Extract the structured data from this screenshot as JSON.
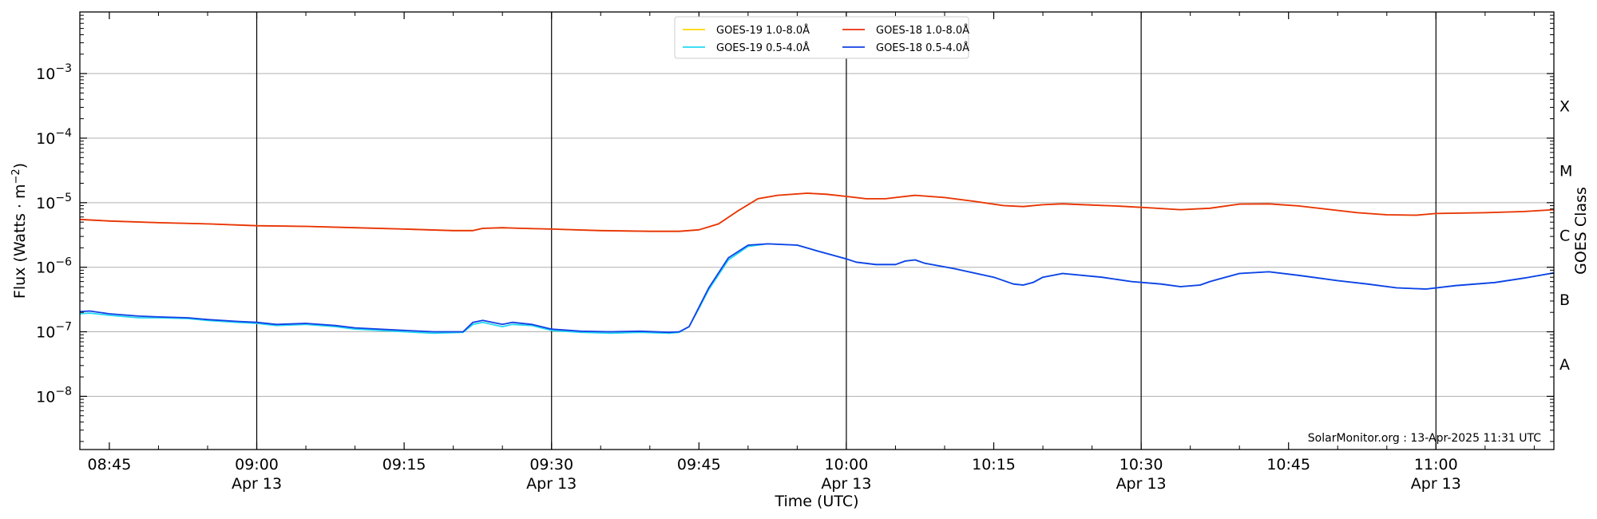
{
  "chart_data": {
    "type": "line",
    "xlabel": "Time (UTC)",
    "ylabel_parts": [
      "Flux (Watts · m",
      "−2",
      ")"
    ],
    "right_label": "GOES Class",
    "x_range": [
      "08:42",
      "11:12"
    ],
    "y_range": [
      1.5e-09,
      0.009
    ],
    "y_scale": "log",
    "grid": "horizontal at decades",
    "legend_position": "top-center",
    "colors": {
      "goes19_long": "#ffd700",
      "goes18_long": "#e8310e",
      "goes19_short": "#22d8f0",
      "goes18_short": "#1340e6",
      "vlines": "#000000",
      "grid": "#b0b0b0"
    },
    "x_ticks": [
      {
        "t": "08:45",
        "line1": "08:45",
        "line2": ""
      },
      {
        "t": "09:00",
        "line1": "09:00",
        "line2": "Apr 13"
      },
      {
        "t": "09:15",
        "line1": "09:15",
        "line2": ""
      },
      {
        "t": "09:30",
        "line1": "09:30",
        "line2": "Apr 13"
      },
      {
        "t": "09:45",
        "line1": "09:45",
        "line2": ""
      },
      {
        "t": "10:00",
        "line1": "10:00",
        "line2": "Apr 13"
      },
      {
        "t": "10:15",
        "line1": "10:15",
        "line2": ""
      },
      {
        "t": "10:30",
        "line1": "10:30",
        "line2": "Apr 13"
      },
      {
        "t": "10:45",
        "line1": "10:45",
        "line2": ""
      },
      {
        "t": "11:00",
        "line1": "11:00",
        "line2": "Apr 13"
      }
    ],
    "y_ticks": [
      {
        "value": 1e-08,
        "exp": "−8"
      },
      {
        "value": 1e-07,
        "exp": "−7"
      },
      {
        "value": 1e-06,
        "exp": "−6"
      },
      {
        "value": 1e-05,
        "exp": "−5"
      },
      {
        "value": 0.0001,
        "exp": "−4"
      },
      {
        "value": 0.001,
        "exp": "−3"
      }
    ],
    "goes_classes": [
      {
        "label": "A",
        "value": 3.16e-08
      },
      {
        "label": "B",
        "value": 3.16e-07
      },
      {
        "label": "C",
        "value": 3.16e-06
      },
      {
        "label": "M",
        "value": 3.16e-05
      },
      {
        "label": "X",
        "value": 0.000316
      }
    ],
    "vlines": [
      "09:00",
      "09:30",
      "10:00",
      "10:30",
      "11:00"
    ],
    "series": [
      {
        "name": "GOES-19 1.0-8.0Å",
        "color_key": "goes19_long",
        "x": [
          "08:42",
          "08:45",
          "08:50",
          "08:55",
          "09:00",
          "09:05",
          "09:10",
          "09:15",
          "09:20",
          "09:22",
          "09:23",
          "09:25",
          "09:27",
          "09:30",
          "09:35",
          "09:40",
          "09:43",
          "09:45",
          "09:47",
          "09:49",
          "09:51",
          "09:53",
          "09:56",
          "09:58",
          "10:00",
          "10:02",
          "10:04",
          "10:05",
          "10:07",
          "10:10",
          "10:13",
          "10:16",
          "10:18",
          "10:20",
          "10:22",
          "10:25",
          "10:28",
          "10:31",
          "10:34",
          "10:37",
          "10:40",
          "10:43",
          "10:46",
          "10:49",
          "10:52",
          "10:55",
          "10:58",
          "11:00",
          "11:05",
          "11:09",
          "11:12"
        ],
        "y": [
          5.5e-06,
          5.2e-06,
          4.9e-06,
          4.7e-06,
          4.4e-06,
          4.3e-06,
          4.1e-06,
          3.9e-06,
          3.7e-06,
          3.7e-06,
          4e-06,
          4.1e-06,
          4e-06,
          3.9e-06,
          3.7e-06,
          3.6e-06,
          3.6e-06,
          3.8e-06,
          4.7e-06,
          7.5e-06,
          1.15e-05,
          1.3e-05,
          1.4e-05,
          1.35e-05,
          1.25e-05,
          1.15e-05,
          1.15e-05,
          1.2e-05,
          1.3e-05,
          1.2e-05,
          1.05e-05,
          9e-06,
          8.7e-06,
          9.3e-06,
          9.6e-06,
          9.2e-06,
          8.8e-06,
          8.3e-06,
          7.8e-06,
          8.2e-06,
          9.5e-06,
          9.6e-06,
          8.9e-06,
          7.9e-06,
          7e-06,
          6.5e-06,
          6.4e-06,
          6.8e-06,
          7e-06,
          7.3e-06,
          7.8e-06
        ]
      },
      {
        "name": "GOES-18 1.0-8.0Å",
        "color_key": "goes18_long",
        "x": [
          "08:42",
          "08:45",
          "08:50",
          "08:55",
          "09:00",
          "09:05",
          "09:10",
          "09:15",
          "09:20",
          "09:22",
          "09:23",
          "09:25",
          "09:27",
          "09:30",
          "09:35",
          "09:40",
          "09:43",
          "09:45",
          "09:47",
          "09:49",
          "09:51",
          "09:53",
          "09:56",
          "09:58",
          "10:00",
          "10:02",
          "10:04",
          "10:05",
          "10:07",
          "10:10",
          "10:13",
          "10:16",
          "10:18",
          "10:20",
          "10:22",
          "10:25",
          "10:28",
          "10:31",
          "10:34",
          "10:37",
          "10:40",
          "10:43",
          "10:46",
          "10:49",
          "10:52",
          "10:55",
          "10:58",
          "11:00",
          "11:05",
          "11:09",
          "11:12"
        ],
        "y": [
          5.5e-06,
          5.2e-06,
          4.9e-06,
          4.7e-06,
          4.4e-06,
          4.3e-06,
          4.1e-06,
          3.9e-06,
          3.7e-06,
          3.7e-06,
          4e-06,
          4.1e-06,
          4e-06,
          3.9e-06,
          3.7e-06,
          3.6e-06,
          3.6e-06,
          3.8e-06,
          4.7e-06,
          7.5e-06,
          1.15e-05,
          1.3e-05,
          1.4e-05,
          1.35e-05,
          1.25e-05,
          1.15e-05,
          1.15e-05,
          1.2e-05,
          1.3e-05,
          1.2e-05,
          1.05e-05,
          9e-06,
          8.7e-06,
          9.3e-06,
          9.6e-06,
          9.2e-06,
          8.8e-06,
          8.3e-06,
          7.8e-06,
          8.2e-06,
          9.5e-06,
          9.6e-06,
          8.9e-06,
          7.9e-06,
          7e-06,
          6.5e-06,
          6.4e-06,
          6.8e-06,
          7e-06,
          7.3e-06,
          7.8e-06
        ]
      },
      {
        "name": "GOES-19 0.5-4.0Å",
        "color_key": "goes19_short",
        "x": [
          "08:42",
          "08:43",
          "08:45",
          "08:48",
          "08:50",
          "08:53",
          "08:55",
          "08:58",
          "09:00",
          "09:02",
          "09:05",
          "09:08",
          "09:10",
          "09:15",
          "09:18",
          "09:21",
          "09:22",
          "09:23",
          "09:25",
          "09:26",
          "09:28",
          "09:30",
          "09:33",
          "09:36",
          "09:39",
          "09:42",
          "09:43",
          "09:44",
          "09:45",
          "09:46",
          "09:48",
          "09:50",
          "09:52",
          "09:55",
          "09:57",
          "10:00",
          "10:01",
          "10:03",
          "10:05",
          "10:06",
          "10:07",
          "10:08",
          "10:11",
          "10:15",
          "10:17",
          "10:18",
          "10:19",
          "10:20",
          "10:22",
          "10:26",
          "10:29",
          "10:32",
          "10:34",
          "10:36",
          "10:37",
          "10:40",
          "10:43",
          "10:46",
          "10:50",
          "10:53",
          "10:56",
          "10:59",
          "11:02",
          "11:06",
          "11:09",
          "11:12"
        ],
        "y": [
          1.9e-07,
          1.95e-07,
          1.8e-07,
          1.65e-07,
          1.65e-07,
          1.6e-07,
          1.5e-07,
          1.4e-07,
          1.35e-07,
          1.25e-07,
          1.3e-07,
          1.2e-07,
          1.1e-07,
          1e-07,
          9.5e-08,
          9.8e-08,
          1.3e-07,
          1.4e-07,
          1.2e-07,
          1.3e-07,
          1.25e-07,
          1.05e-07,
          9.8e-08,
          9.5e-08,
          9.8e-08,
          9.5e-08,
          9.8e-08,
          1.2e-07,
          2.3e-07,
          4.5e-07,
          1.3e-06,
          2.1e-06,
          2.3e-06,
          2.2e-06,
          1.8e-06,
          1.35e-06,
          1.2e-06,
          1.1e-06,
          1.1e-06,
          1.25e-06,
          1.3e-06,
          1.15e-06,
          9.5e-07,
          7e-07,
          5.5e-07,
          5.3e-07,
          5.8e-07,
          7e-07,
          8e-07,
          7e-07,
          6e-07,
          5.5e-07,
          5e-07,
          5.3e-07,
          6e-07,
          8e-07,
          8.5e-07,
          7.5e-07,
          6.2e-07,
          5.5e-07,
          4.8e-07,
          4.6e-07,
          5.2e-07,
          5.8e-07,
          6.8e-07,
          8.2e-07
        ]
      },
      {
        "name": "GOES-18 0.5-4.0Å",
        "color_key": "goes18_short",
        "x": [
          "08:42",
          "08:43",
          "08:45",
          "08:48",
          "08:50",
          "08:53",
          "08:55",
          "08:58",
          "09:00",
          "09:02",
          "09:05",
          "09:08",
          "09:10",
          "09:15",
          "09:18",
          "09:21",
          "09:22",
          "09:23",
          "09:25",
          "09:26",
          "09:28",
          "09:30",
          "09:33",
          "09:36",
          "09:39",
          "09:42",
          "09:43",
          "09:44",
          "09:45",
          "09:46",
          "09:48",
          "09:50",
          "09:52",
          "09:55",
          "09:57",
          "10:00",
          "10:01",
          "10:03",
          "10:05",
          "10:06",
          "10:07",
          "10:08",
          "10:11",
          "10:15",
          "10:17",
          "10:18",
          "10:19",
          "10:20",
          "10:22",
          "10:26",
          "10:29",
          "10:32",
          "10:34",
          "10:36",
          "10:37",
          "10:40",
          "10:43",
          "10:46",
          "10:50",
          "10:53",
          "10:56",
          "10:59",
          "11:02",
          "11:06",
          "11:09",
          "11:12"
        ],
        "y": [
          2.05e-07,
          2.1e-07,
          1.9e-07,
          1.75e-07,
          1.7e-07,
          1.65e-07,
          1.55e-07,
          1.45e-07,
          1.4e-07,
          1.3e-07,
          1.35e-07,
          1.25e-07,
          1.15e-07,
          1.05e-07,
          1e-07,
          1e-07,
          1.4e-07,
          1.5e-07,
          1.3e-07,
          1.4e-07,
          1.3e-07,
          1.1e-07,
          1.02e-07,
          1e-07,
          1.02e-07,
          9.8e-08,
          1e-07,
          1.2e-07,
          2.4e-07,
          4.8e-07,
          1.4e-06,
          2.2e-06,
          2.3e-06,
          2.2e-06,
          1.8e-06,
          1.35e-06,
          1.2e-06,
          1.1e-06,
          1.1e-06,
          1.25e-06,
          1.3e-06,
          1.15e-06,
          9.5e-07,
          7e-07,
          5.5e-07,
          5.3e-07,
          5.8e-07,
          7e-07,
          8e-07,
          7e-07,
          6e-07,
          5.5e-07,
          5e-07,
          5.3e-07,
          6e-07,
          8e-07,
          8.5e-07,
          7.5e-07,
          6.2e-07,
          5.5e-07,
          4.8e-07,
          4.6e-07,
          5.2e-07,
          5.8e-07,
          6.8e-07,
          8.2e-07
        ]
      }
    ],
    "legend_order": [
      0,
      2,
      1,
      3
    ],
    "credit": "SolarMonitor.org : 13-Apr-2025 11:31 UTC"
  }
}
